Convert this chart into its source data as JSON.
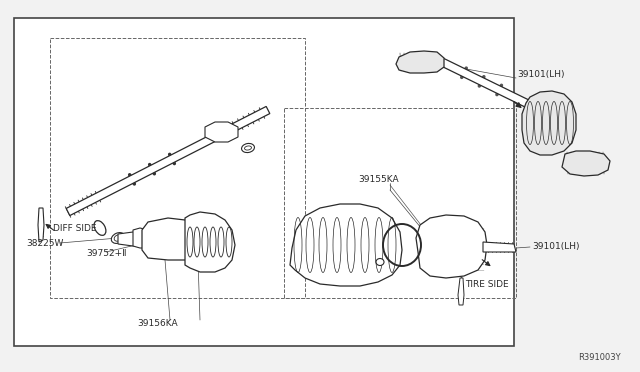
{
  "bg_color": "#f2f2f2",
  "box_bg": "#ffffff",
  "line_color": "#2a2a2a",
  "text_color": "#2a2a2a",
  "ref_code": "R391003Y",
  "labels": {
    "diff_side": "DIFF SIDE",
    "tire_side": "TIRE SIDE",
    "part_39156ka": "39156KA",
    "part_39155ka": "39155KA",
    "part_38225w": "38225W",
    "part_39752d": "39752+Ⅱ",
    "part_39101lh_top": "39101(LH)",
    "part_39101lh_bot": "39101(LH)"
  },
  "figsize": [
    6.4,
    3.72
  ],
  "dpi": 100
}
